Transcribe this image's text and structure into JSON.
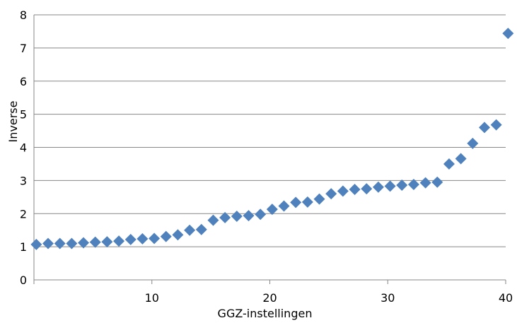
{
  "chart_data": {
    "type": "scatter",
    "title": "",
    "xlabel": "GGZ-instellingen",
    "ylabel": "Inverse",
    "xlim": [
      0,
      40
    ],
    "ylim": [
      0,
      8
    ],
    "x_ticks": [
      "10",
      "20",
      "30",
      "40"
    ],
    "y_ticks": [
      "0",
      "1",
      "2",
      "3",
      "4",
      "5",
      "6",
      "7",
      "8"
    ],
    "grid": "horizontal",
    "legend": "none",
    "marker": "diamond",
    "marker_color": "#4f81bd",
    "series": [
      {
        "x": [
          0.2,
          1.2,
          2.2,
          3.2,
          4.2,
          5.2,
          6.2,
          7.2,
          8.2,
          9.2,
          10.2,
          11.2,
          12.2,
          13.2,
          14.2,
          15.2,
          16.2,
          17.2,
          18.2,
          19.2,
          20.2,
          21.2,
          22.2,
          23.2,
          24.2,
          25.2,
          26.2,
          27.2,
          28.2,
          29.2,
          30.2,
          31.2,
          32.2,
          33.2,
          34.2,
          35.2,
          36.2,
          37.2,
          38.2,
          39.2,
          40.2
        ],
        "y": [
          1.07,
          1.1,
          1.1,
          1.1,
          1.12,
          1.14,
          1.15,
          1.17,
          1.22,
          1.24,
          1.25,
          1.31,
          1.36,
          1.5,
          1.52,
          1.8,
          1.88,
          1.92,
          1.94,
          1.98,
          2.13,
          2.23,
          2.34,
          2.35,
          2.44,
          2.6,
          2.68,
          2.73,
          2.75,
          2.8,
          2.83,
          2.86,
          2.88,
          2.93,
          2.95,
          3.5,
          3.66,
          4.12,
          4.6,
          4.68,
          7.44
        ]
      }
    ]
  }
}
